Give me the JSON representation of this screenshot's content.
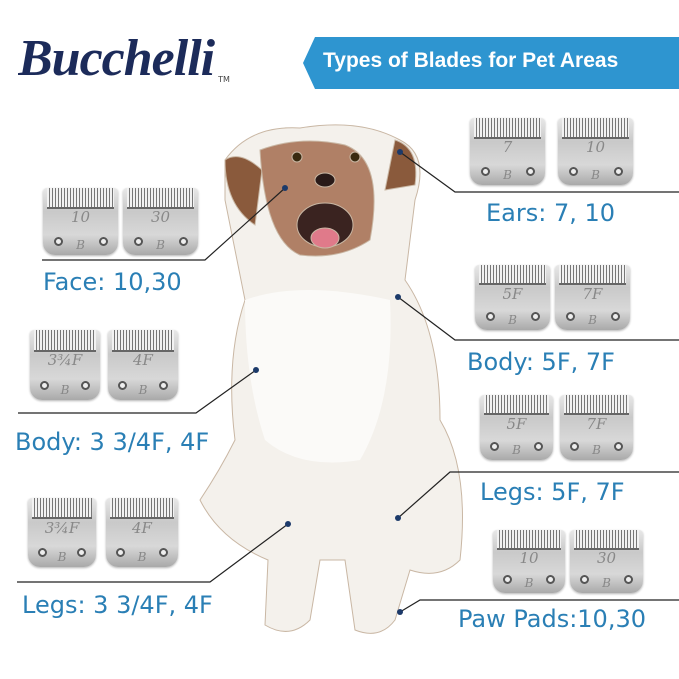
{
  "brand": {
    "name": "Bucchelli",
    "tm": "TM"
  },
  "banner": {
    "title": "Types of Blades for Pet Areas"
  },
  "accent_color": "#2e95d0",
  "label_color": "#2a7fb5",
  "areas": [
    {
      "label": "Ears: 7, 10",
      "blades": [
        "7",
        "10"
      ]
    },
    {
      "label": "Face: 10,30",
      "blades": [
        "10",
        "30"
      ]
    },
    {
      "label": "Body: 5F, 7F",
      "blades": [
        "5F",
        "7F"
      ]
    },
    {
      "label": "Body: 3 3/4F, 4F",
      "blades": [
        "3¾F",
        "4F"
      ]
    },
    {
      "label": "Legs: 5F, 7F",
      "blades": [
        "5F",
        "7F"
      ]
    },
    {
      "label": "Legs: 3 3/4F, 4F",
      "blades": [
        "3¾F",
        "4F"
      ]
    },
    {
      "label": "Paw Pads:10,30",
      "blades": [
        "10",
        "30"
      ]
    }
  ],
  "blade_mark": "B"
}
